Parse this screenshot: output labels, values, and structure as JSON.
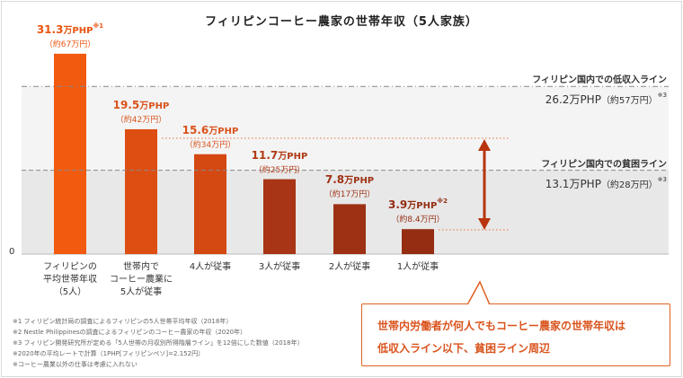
{
  "chart_data": {
    "type": "bar",
    "title": "フィリピンコーヒー農家の世帯年収（5人家族）",
    "unit": "万PHP",
    "categories": [
      "フィリピンの平均世帯年収（5人）",
      "世帯内でコーヒー農業に5人が従事",
      "4人が従事",
      "3人が従事",
      "2人が従事",
      "1人が従事"
    ],
    "category_lines": [
      [
        "フィリピンの",
        "平均世帯年収",
        "（5人）"
      ],
      [
        "世帯内で",
        "コーヒー農業に",
        "5人が従事"
      ],
      [
        "4人が従事"
      ],
      [
        "3人が従事"
      ],
      [
        "2人が従事"
      ],
      [
        "1人が従事"
      ]
    ],
    "values": [
      31.3,
      19.5,
      15.6,
      11.7,
      7.8,
      3.9
    ],
    "value_labels": [
      "31.3",
      "19.5",
      "15.6",
      "11.7",
      "7.8",
      "3.9"
    ],
    "jpy_labels": [
      "（約67万円）",
      "（約42万円）",
      "（約34万円）",
      "（約25万円）",
      "（約17万円）",
      "（約8.4万円）"
    ],
    "value_notes": [
      "※1",
      "",
      "",
      "",
      "",
      "※2"
    ],
    "colors": [
      "#f25a0f",
      "#dd4e12",
      "#d44812",
      "#a83516",
      "#9e3114",
      "#942d12"
    ],
    "label_colors": [
      "#e8540f",
      "#d9531c",
      "#d9531c",
      "#b03a14",
      "#9e3114",
      "#942d12"
    ],
    "ylim": [
      0,
      33.8
    ],
    "zero_label": "0",
    "reference_lines": [
      {
        "name": "フィリピン国内での低収入ライン",
        "value": 26.2,
        "amount": "26.2",
        "jpy": "（約57万円）",
        "note": "※3"
      },
      {
        "name": "フィリピン国内での貧困ライン",
        "value": 13.1,
        "amount": "13.1",
        "jpy": "（約28万円）",
        "note": "※3"
      }
    ]
  },
  "callout": {
    "line1": "世帯内労働者が何人でもコーヒー農家の世帯年収は",
    "line2": "低収入ライン以下、貧困ライン周辺"
  },
  "footnotes": [
    "※1 フィリピン統計局の調査によるフィリピンの5人世帯平均年収（2018年）",
    "※2 Nestle Philippinesの調査によるフィリピンのコーヒー農家の年収（2020年）",
    "※3 フィリピン開発研究所が定める「5人世帯の月収別所得階層ライン」を12倍にした数値（2018年）",
    "※2020年の平均レートで計算（1PHP[フィリピンペソ]=2.152円）",
    "※コーヒー農業以外の仕事は考慮に入れない"
  ]
}
